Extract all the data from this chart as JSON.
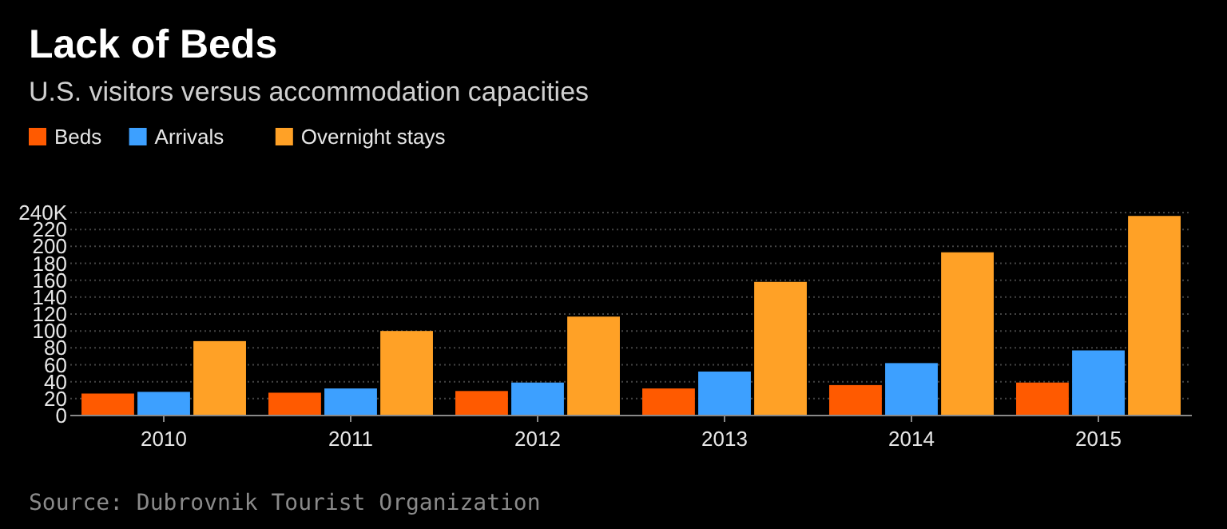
{
  "chart_data": {
    "type": "bar",
    "title": "Lack of Beds",
    "subtitle": "U.S. visitors versus accommodation capacities",
    "categories": [
      "2010",
      "2011",
      "2012",
      "2013",
      "2014",
      "2015"
    ],
    "series": [
      {
        "name": "Beds",
        "color": "#ff5a00",
        "values": [
          26,
          27,
          29,
          32,
          36,
          39
        ]
      },
      {
        "name": "Arrivals",
        "color": "#3da0ff",
        "values": [
          28,
          32,
          39,
          52,
          62,
          77
        ]
      },
      {
        "name": "Overnight stays",
        "color": "#ffa126",
        "values": [
          88,
          100,
          117,
          158,
          193,
          236
        ]
      }
    ],
    "ylim": [
      0,
      240
    ],
    "yticks": [
      0,
      20,
      40,
      60,
      80,
      100,
      120,
      140,
      160,
      180,
      200,
      220,
      {
        "value": 240,
        "label": "240K"
      }
    ],
    "grid": "y",
    "legend": "top left",
    "annotations": [
      "Source: Dubrovnik Tourist Organization"
    ]
  }
}
